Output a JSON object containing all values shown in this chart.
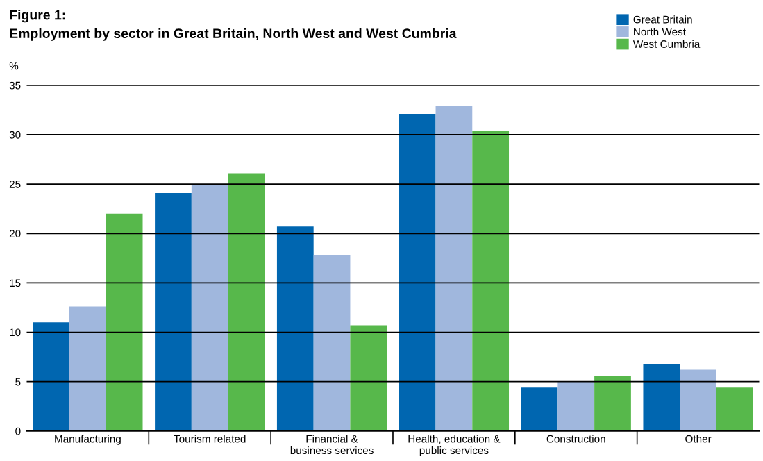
{
  "chart_data": {
    "type": "bar",
    "title": "Figure 1:",
    "subtitle": "Employment by sector in Great Britain, North West and West Cumbria",
    "ylabel": "%",
    "categories": [
      "Manufacturing",
      "Tourism related",
      "Financial &\nbusiness services",
      "Health, education &\npublic services",
      "Construction",
      "Other"
    ],
    "series": [
      {
        "name": "Great Britain",
        "color": "#0066b0",
        "values": [
          11.0,
          24.1,
          20.7,
          32.1,
          4.4,
          6.8
        ]
      },
      {
        "name": "North West",
        "color": "#a0b7dd",
        "values": [
          12.6,
          25.0,
          17.8,
          32.9,
          5.0,
          6.2
        ]
      },
      {
        "name": "West Cumbria",
        "color": "#57b84b",
        "values": [
          22.0,
          26.1,
          10.7,
          30.4,
          5.6,
          4.4
        ]
      }
    ],
    "ylim": [
      0,
      35
    ],
    "yticks": [
      0,
      5,
      10,
      15,
      20,
      25,
      30,
      35
    ],
    "grid": "y",
    "legend": "top right"
  }
}
